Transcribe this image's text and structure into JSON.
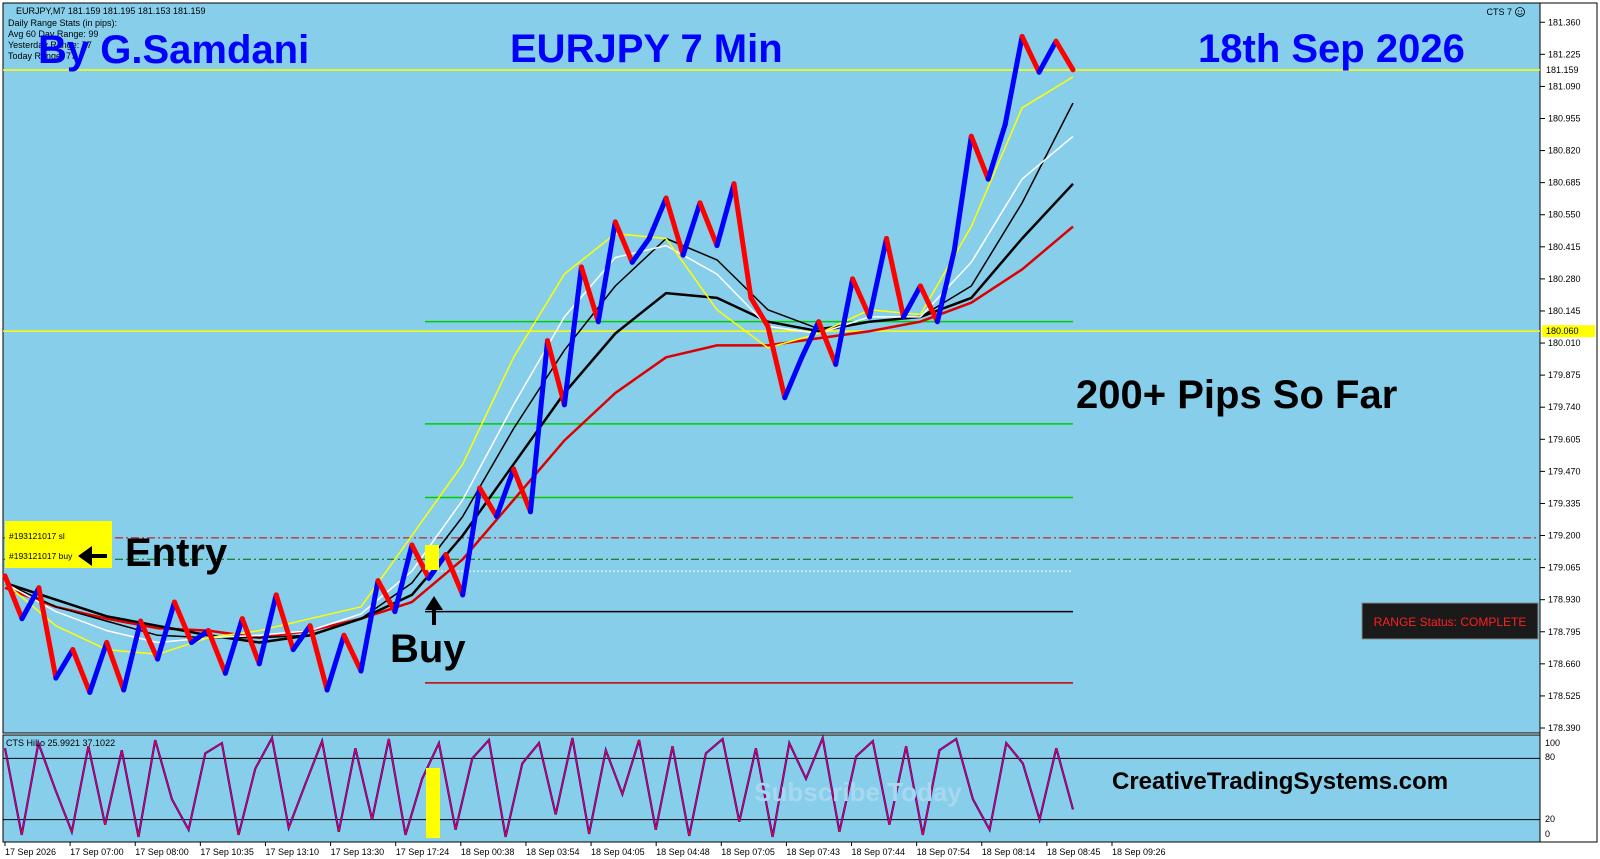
{
  "colors": {
    "background": "#87ceeb",
    "bull": "#0000ff",
    "bear": "#ff0000",
    "ma_yellow": "#ffff00",
    "ma_white": "#ffffff",
    "ma_black": "#000000",
    "ma_red": "#dd0000",
    "level_green": "#00cc00",
    "level_yellow": "#ffff00",
    "title_blue": "#0000ff",
    "range_box_bg": "#1a1a1a",
    "range_box_text": "#ff0000"
  },
  "header": {
    "info_line": "EURJPY,M7  181.159 181.195 181.153 181.159",
    "stats_title": "Daily Range Stats (in pips):",
    "avg_range": "Avg 60 Day Range: 99",
    "yesterday_range": "Yesterday Range: 77",
    "today_range": "Today Range: 77",
    "indicator_name": "CTS 7",
    "author": "By G.Samdani",
    "symbol_title": "EURJPY 7 Min",
    "date_title": "18th Sep 2026"
  },
  "annotations": {
    "entry": "Entry",
    "buy": "Buy",
    "pips": "200+ Pips So Far",
    "website": "CreativeTradingSystems.com",
    "watermark": "Subscribe Today",
    "range_status": "RANGE Status: COMPLETE",
    "order_sl": "#193121017 sl",
    "order_buy": "#193121017 buy"
  },
  "indicator": {
    "title": "CTS HiLo 25.9921 37.1022",
    "ticks": [
      "100",
      "80",
      "20",
      "0"
    ],
    "levels": [
      80,
      20
    ]
  },
  "chart_data": {
    "type": "line",
    "symbol": "EURJPY",
    "timeframe": "M7",
    "ylim": [
      178.39,
      181.42
    ],
    "y_ticks": [
      "181.360",
      "181.225",
      "181.090",
      "180.955",
      "180.820",
      "180.685",
      "180.550",
      "180.415",
      "180.280",
      "180.145",
      "180.010",
      "179.875",
      "179.740",
      "179.605",
      "179.470",
      "179.335",
      "179.200",
      "179.065",
      "178.930",
      "178.795",
      "178.660",
      "178.525",
      "178.390"
    ],
    "current_price": "181.159",
    "level_price": "180.060",
    "x_ticks": [
      "17 Sep 2026",
      "17 Sep 07:00",
      "17 Sep 08:00",
      "17 Sep 10:35",
      "17 Sep 13:10",
      "17 Sep 13:30",
      "17 Sep 17:24",
      "18 Sep 00:38",
      "18 Sep 03:54",
      "18 Sep 04:05",
      "18 Sep 04:48",
      "18 Sep 07:05",
      "18 Sep 07:43",
      "18 Sep 07:44",
      "18 Sep 07:54",
      "18 Sep 08:14",
      "18 Sep 08:45",
      "18 Sep 09:26"
    ],
    "horizontal_levels": [
      {
        "price": 181.159,
        "color": "yellow",
        "style": "solid",
        "extent": "full"
      },
      {
        "price": 180.06,
        "color": "yellow",
        "style": "solid",
        "extent": "full"
      },
      {
        "price": 180.1,
        "color": "green",
        "style": "solid",
        "extent": "partial"
      },
      {
        "price": 179.67,
        "color": "green",
        "style": "solid",
        "extent": "partial"
      },
      {
        "price": 179.36,
        "color": "green",
        "style": "solid",
        "extent": "partial"
      },
      {
        "price": 179.19,
        "color": "red",
        "style": "dash-dot",
        "extent": "full"
      },
      {
        "price": 179.1,
        "color": "darkgreen",
        "style": "dash-dot",
        "extent": "full"
      },
      {
        "price": 179.05,
        "color": "white",
        "style": "dotted",
        "extent": "partial"
      },
      {
        "price": 178.88,
        "color": "black",
        "style": "solid",
        "extent": "partial"
      },
      {
        "price": 178.58,
        "color": "red",
        "style": "solid",
        "extent": "partial"
      }
    ],
    "price_path": [
      179.03,
      178.85,
      178.98,
      178.6,
      178.72,
      178.54,
      178.75,
      178.55,
      178.84,
      178.68,
      178.92,
      178.75,
      178.8,
      178.62,
      178.85,
      178.66,
      178.95,
      178.72,
      178.82,
      178.55,
      178.78,
      178.63,
      179.01,
      178.88,
      179.16,
      179.02,
      179.12,
      178.95,
      179.4,
      179.28,
      179.48,
      179.3,
      180.02,
      179.75,
      180.33,
      180.1,
      180.52,
      180.35,
      180.45,
      180.62,
      180.38,
      180.6,
      180.42,
      180.68,
      180.2,
      180.08,
      179.78,
      179.95,
      180.1,
      179.92,
      180.28,
      180.12,
      180.45,
      180.12,
      180.25,
      180.1,
      180.4,
      180.88,
      180.7,
      180.93,
      181.3,
      181.15,
      181.28,
      181.16
    ],
    "ma_yellow": [
      179.0,
      178.82,
      178.72,
      178.7,
      178.77,
      178.8,
      178.85,
      178.9,
      179.2,
      179.5,
      179.95,
      180.3,
      180.47,
      180.45,
      180.15,
      179.99,
      180.05,
      180.15,
      180.13,
      180.5,
      181.0,
      181.13
    ],
    "ma_white": [
      179.0,
      178.88,
      178.8,
      178.75,
      178.77,
      178.78,
      178.8,
      178.87,
      179.05,
      179.35,
      179.75,
      180.12,
      180.37,
      180.42,
      180.3,
      180.08,
      180.05,
      180.12,
      180.12,
      180.35,
      180.7,
      180.88
    ],
    "ma_black1": [
      179.0,
      178.9,
      178.84,
      178.78,
      178.77,
      178.77,
      178.78,
      178.85,
      179.0,
      179.28,
      179.65,
      179.98,
      180.25,
      180.45,
      180.36,
      180.15,
      180.07,
      180.1,
      180.12,
      180.25,
      180.6,
      181.02
    ],
    "ma_black2": [
      179.0,
      178.93,
      178.86,
      178.82,
      178.78,
      178.75,
      178.78,
      178.85,
      178.95,
      179.2,
      179.5,
      179.8,
      180.05,
      180.22,
      180.2,
      180.1,
      180.06,
      180.1,
      180.12,
      180.2,
      180.45,
      180.68
    ],
    "ma_red": [
      178.98,
      178.9,
      178.85,
      178.81,
      178.8,
      178.77,
      178.8,
      178.85,
      178.92,
      179.1,
      179.35,
      179.6,
      179.8,
      179.95,
      180.0,
      180.0,
      180.03,
      180.06,
      180.1,
      180.18,
      180.32,
      180.5
    ],
    "oscillator": [
      90,
      5,
      95,
      50,
      8,
      92,
      15,
      88,
      3,
      98,
      40,
      10,
      85,
      95,
      5,
      70,
      100,
      12,
      55,
      97,
      8,
      90,
      20,
      99,
      5,
      60,
      95,
      10,
      80,
      98,
      3,
      75,
      95,
      25,
      100,
      6,
      88,
      45,
      98,
      10,
      92,
      4,
      85,
      99,
      18,
      90,
      3,
      95,
      60,
      100,
      8,
      82,
      97,
      15,
      92,
      5,
      88,
      99,
      40,
      10,
      95,
      75,
      20,
      90,
      30
    ]
  }
}
